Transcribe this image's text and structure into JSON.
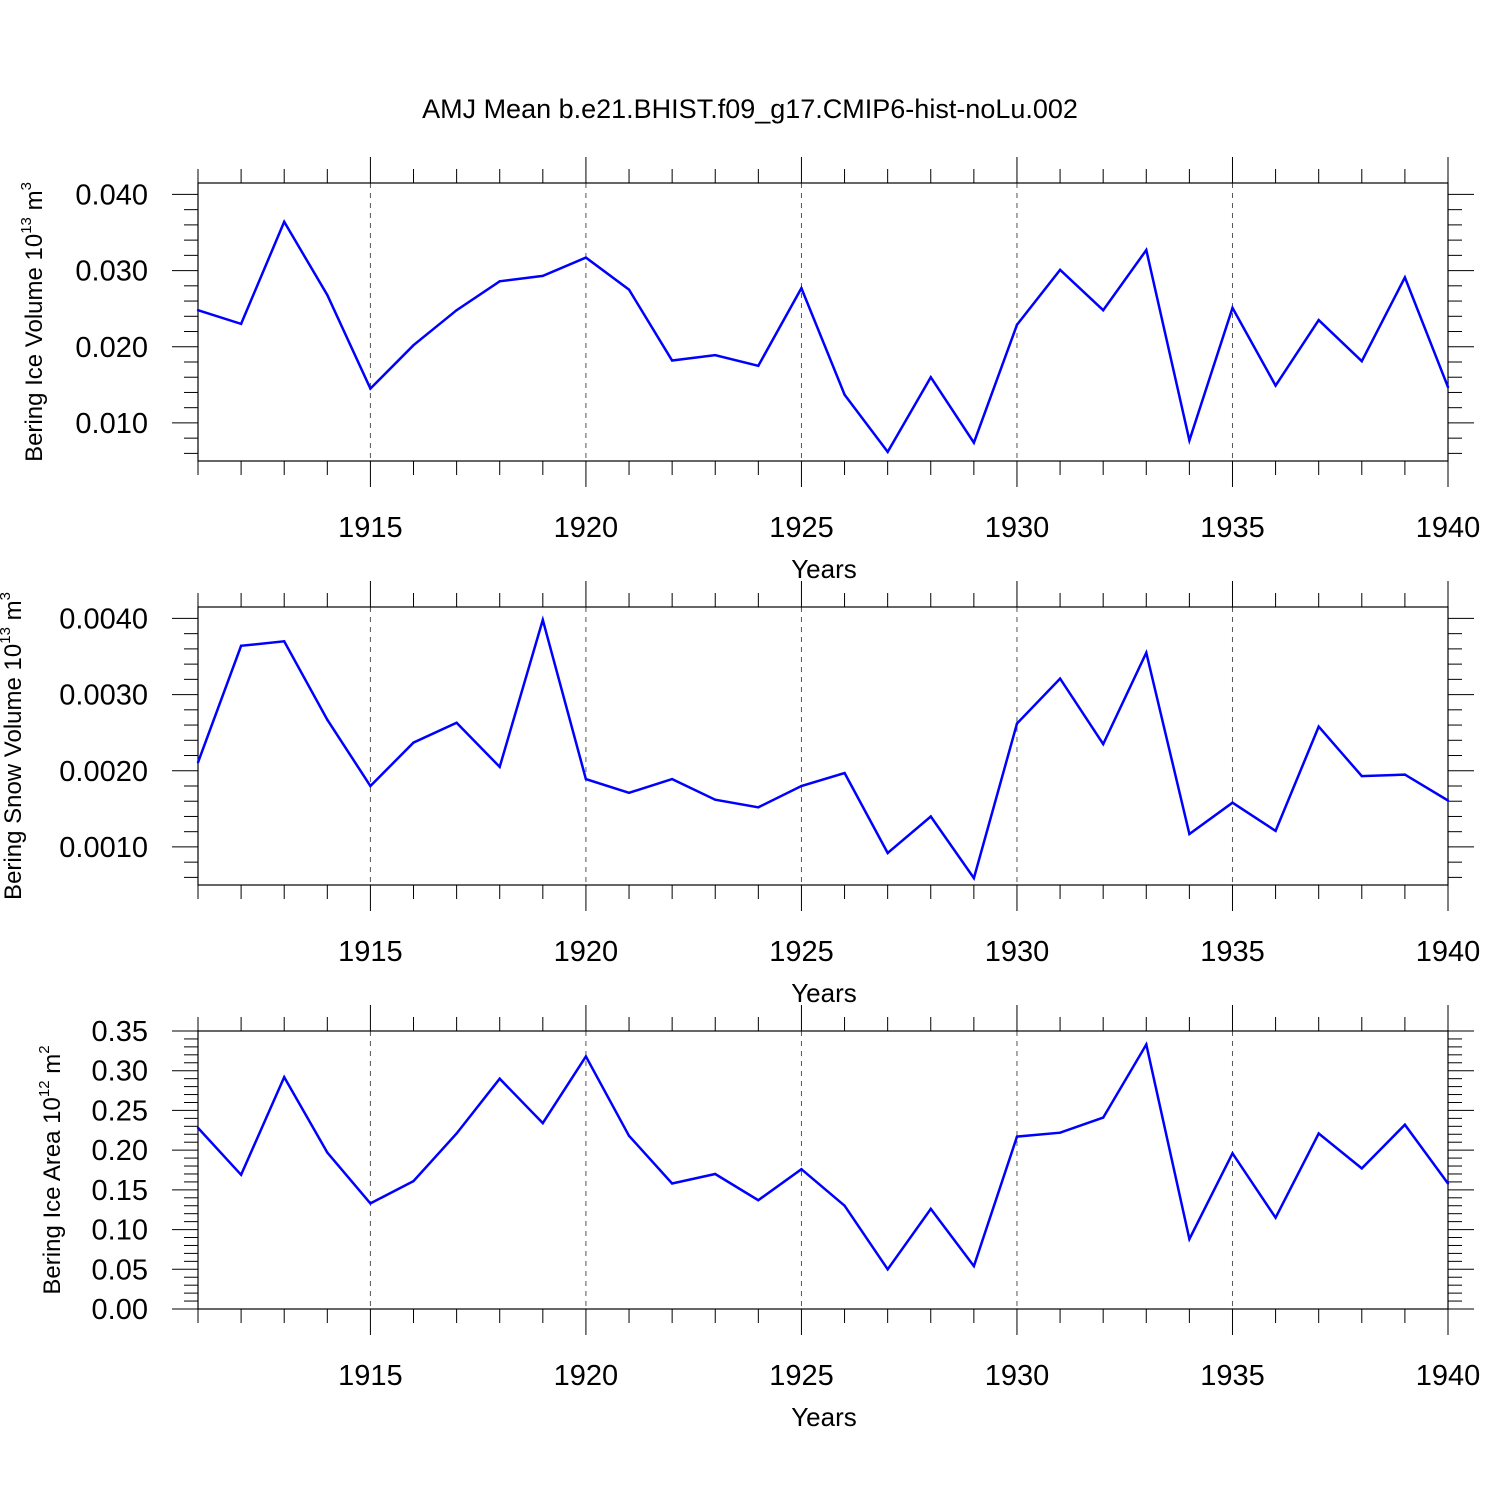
{
  "title": "AMJ Mean b.e21.BHIST.f09_g17.CMIP6-hist-noLu.002",
  "chart_data": [
    {
      "type": "line",
      "ylabel": {
        "main": "Bering Ice Volume 10",
        "exp": "13",
        "unit": " m",
        "unit_exp": "3"
      },
      "xlabel": "Years",
      "xlim": [
        1911,
        1940
      ],
      "ylim": [
        0.005,
        0.0415
      ],
      "yticks": [
        0.01,
        0.02,
        0.03,
        0.04
      ],
      "ytick_labels": [
        "0.010",
        "0.020",
        "0.030",
        "0.040"
      ],
      "xticks": [
        1915,
        1920,
        1925,
        1930,
        1935,
        1940
      ],
      "xtick_labels": [
        "1915",
        "1920",
        "1925",
        "1930",
        "1935",
        "1940"
      ],
      "color": "#0000ff",
      "x": [
        1911,
        1912,
        1913,
        1914,
        1915,
        1916,
        1917,
        1918,
        1919,
        1920,
        1921,
        1922,
        1923,
        1924,
        1925,
        1926,
        1927,
        1928,
        1929,
        1930,
        1931,
        1932,
        1933,
        1934,
        1935,
        1936,
        1937,
        1938,
        1939,
        1940
      ],
      "values": [
        0.0248,
        0.023,
        0.0364,
        0.0268,
        0.0145,
        0.0202,
        0.0248,
        0.0286,
        0.0293,
        0.0317,
        0.0275,
        0.0182,
        0.0189,
        0.0175,
        0.0277,
        0.0137,
        0.0062,
        0.016,
        0.0074,
        0.0229,
        0.0301,
        0.0248,
        0.0327,
        0.0077,
        0.0251,
        0.0149,
        0.0235,
        0.0181,
        0.0291,
        0.0147
      ]
    },
    {
      "type": "line",
      "ylabel": {
        "main": "Bering Snow Volume 10",
        "exp": "13",
        "unit": " m",
        "unit_exp": "3"
      },
      "xlabel": "Years",
      "xlim": [
        1911,
        1940
      ],
      "ylim": [
        0.0005,
        0.00415
      ],
      "yticks": [
        0.001,
        0.002,
        0.003,
        0.004
      ],
      "ytick_labels": [
        "0.0010",
        "0.0020",
        "0.0030",
        "0.0040"
      ],
      "xticks": [
        1915,
        1920,
        1925,
        1930,
        1935,
        1940
      ],
      "xtick_labels": [
        "1915",
        "1920",
        "1925",
        "1930",
        "1935",
        "1940"
      ],
      "color": "#0000ff",
      "x": [
        1911,
        1912,
        1913,
        1914,
        1915,
        1916,
        1917,
        1918,
        1919,
        1920,
        1921,
        1922,
        1923,
        1924,
        1925,
        1926,
        1927,
        1928,
        1929,
        1930,
        1931,
        1932,
        1933,
        1934,
        1935,
        1936,
        1937,
        1938,
        1939,
        1940
      ],
      "values": [
        0.00211,
        0.00364,
        0.0037,
        0.00267,
        0.0018,
        0.00237,
        0.00263,
        0.00205,
        0.00398,
        0.00189,
        0.00171,
        0.00189,
        0.00162,
        0.00152,
        0.0018,
        0.00197,
        0.00092,
        0.0014,
        0.00059,
        0.00262,
        0.00321,
        0.00235,
        0.00355,
        0.00117,
        0.00158,
        0.00121,
        0.00258,
        0.00193,
        0.00195,
        0.00161
      ]
    },
    {
      "type": "line",
      "ylabel": {
        "main": "Bering Ice Area 10",
        "exp": "12",
        "unit": " m",
        "unit_exp": "2"
      },
      "xlabel": "Years",
      "xlim": [
        1911,
        1940
      ],
      "ylim": [
        0.0,
        0.35
      ],
      "yticks": [
        0.0,
        0.05,
        0.1,
        0.15,
        0.2,
        0.25,
        0.3,
        0.35
      ],
      "ytick_labels": [
        "0.00",
        "0.05",
        "0.10",
        "0.15",
        "0.20",
        "0.25",
        "0.30",
        "0.35"
      ],
      "xticks": [
        1915,
        1920,
        1925,
        1930,
        1935,
        1940
      ],
      "xtick_labels": [
        "1915",
        "1920",
        "1925",
        "1930",
        "1935",
        "1940"
      ],
      "color": "#0000ff",
      "x": [
        1911,
        1912,
        1913,
        1914,
        1915,
        1916,
        1917,
        1918,
        1919,
        1920,
        1921,
        1922,
        1923,
        1924,
        1925,
        1926,
        1927,
        1928,
        1929,
        1930,
        1931,
        1932,
        1933,
        1934,
        1935,
        1936,
        1937,
        1938,
        1939,
        1940
      ],
      "values": [
        0.228,
        0.169,
        0.292,
        0.197,
        0.133,
        0.161,
        0.221,
        0.29,
        0.234,
        0.318,
        0.218,
        0.158,
        0.17,
        0.137,
        0.176,
        0.13,
        0.05,
        0.126,
        0.054,
        0.217,
        0.222,
        0.241,
        0.333,
        0.088,
        0.196,
        0.115,
        0.221,
        0.177,
        0.232,
        0.158
      ]
    }
  ]
}
